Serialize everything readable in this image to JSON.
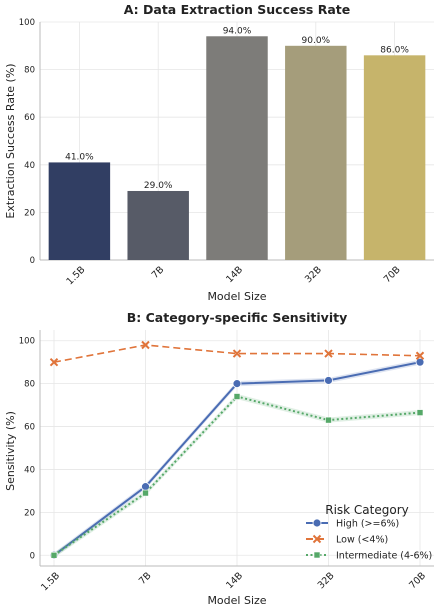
{
  "chart_data": [
    {
      "type": "bar",
      "title": "A: Data Extraction Success Rate",
      "xlabel": "Model Size",
      "ylabel": "Extraction Success Rate (%)",
      "categories": [
        "1.5B",
        "7B",
        "14B",
        "32B",
        "70B"
      ],
      "values": [
        41.0,
        29.0,
        94.0,
        90.0,
        86.0
      ],
      "value_labels": [
        "41.0%",
        "29.0%",
        "94.0%",
        "90.0%",
        "86.0%"
      ],
      "colors": [
        "#313e63",
        "#575b67",
        "#7d7c79",
        "#a59d7b",
        "#c6b46b"
      ],
      "ylim": [
        0,
        100
      ],
      "yticks": [
        0,
        20,
        40,
        60,
        80,
        100
      ],
      "grid": true
    },
    {
      "type": "line",
      "title": "B: Category-specific Sensitivity",
      "xlabel": "Model Size",
      "ylabel": "Sensitivity (%)",
      "categories": [
        "1.5B",
        "7B",
        "14B",
        "32B",
        "70B"
      ],
      "ylim": [
        -5,
        105
      ],
      "yticks": [
        0,
        20,
        40,
        60,
        80,
        100
      ],
      "grid": true,
      "legend_title": "Risk Category",
      "legend_position": "lower-right",
      "series": [
        {
          "name": "High (>=6%)",
          "values": [
            0,
            32,
            80,
            81.5,
            90
          ],
          "color": "#4a6cb3",
          "marker": "circle",
          "dash": "solid"
        },
        {
          "name": "Low (<4%)",
          "values": [
            90,
            98,
            94,
            94,
            93
          ],
          "color": "#e0743a",
          "marker": "x",
          "dash": "dashed"
        },
        {
          "name": "Intermediate (4-6%)",
          "values": [
            0,
            29,
            74,
            63,
            66.5
          ],
          "color": "#55a868",
          "marker": "square",
          "dash": "dotted"
        }
      ]
    }
  ]
}
